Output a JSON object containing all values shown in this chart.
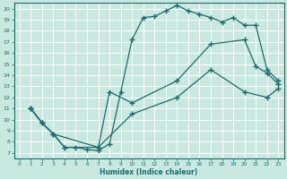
{
  "title": "",
  "xlabel": "Humidex (Indice chaleur)",
  "bg_color": "#c8e8e0",
  "grid_color": "#ffffff",
  "line_color": "#1a6b6b",
  "xlim": [
    -0.5,
    23.5
  ],
  "ylim": [
    6.5,
    20.5
  ],
  "xticks": [
    0,
    1,
    2,
    3,
    4,
    5,
    6,
    7,
    8,
    9,
    10,
    11,
    12,
    13,
    14,
    15,
    16,
    17,
    18,
    19,
    20,
    21,
    22,
    23
  ],
  "yticks": [
    7,
    8,
    9,
    10,
    11,
    12,
    13,
    14,
    15,
    16,
    17,
    18,
    19,
    20
  ],
  "line1_x": [
    1,
    2,
    3,
    4,
    5,
    6,
    7,
    8,
    9,
    10,
    11,
    12,
    13,
    14,
    15,
    16,
    17,
    18,
    19,
    20,
    21,
    22,
    23
  ],
  "line1_y": [
    11.0,
    9.7,
    8.7,
    7.5,
    7.5,
    7.3,
    7.2,
    7.8,
    12.5,
    17.2,
    19.2,
    19.3,
    19.8,
    20.3,
    19.8,
    19.5,
    19.2,
    18.8,
    19.2,
    18.5,
    18.5,
    14.5,
    13.5
  ],
  "line2_x": [
    1,
    2,
    3,
    7,
    8,
    10,
    14,
    17,
    20,
    21,
    22,
    23
  ],
  "line2_y": [
    11.0,
    9.7,
    8.7,
    7.5,
    12.5,
    11.5,
    13.5,
    16.8,
    17.2,
    14.8,
    14.2,
    13.2
  ],
  "line3_x": [
    1,
    2,
    3,
    4,
    7,
    10,
    14,
    17,
    20,
    22,
    23
  ],
  "line3_y": [
    11.0,
    9.7,
    8.7,
    7.5,
    7.5,
    10.5,
    12.0,
    14.5,
    12.5,
    12.0,
    12.8
  ]
}
